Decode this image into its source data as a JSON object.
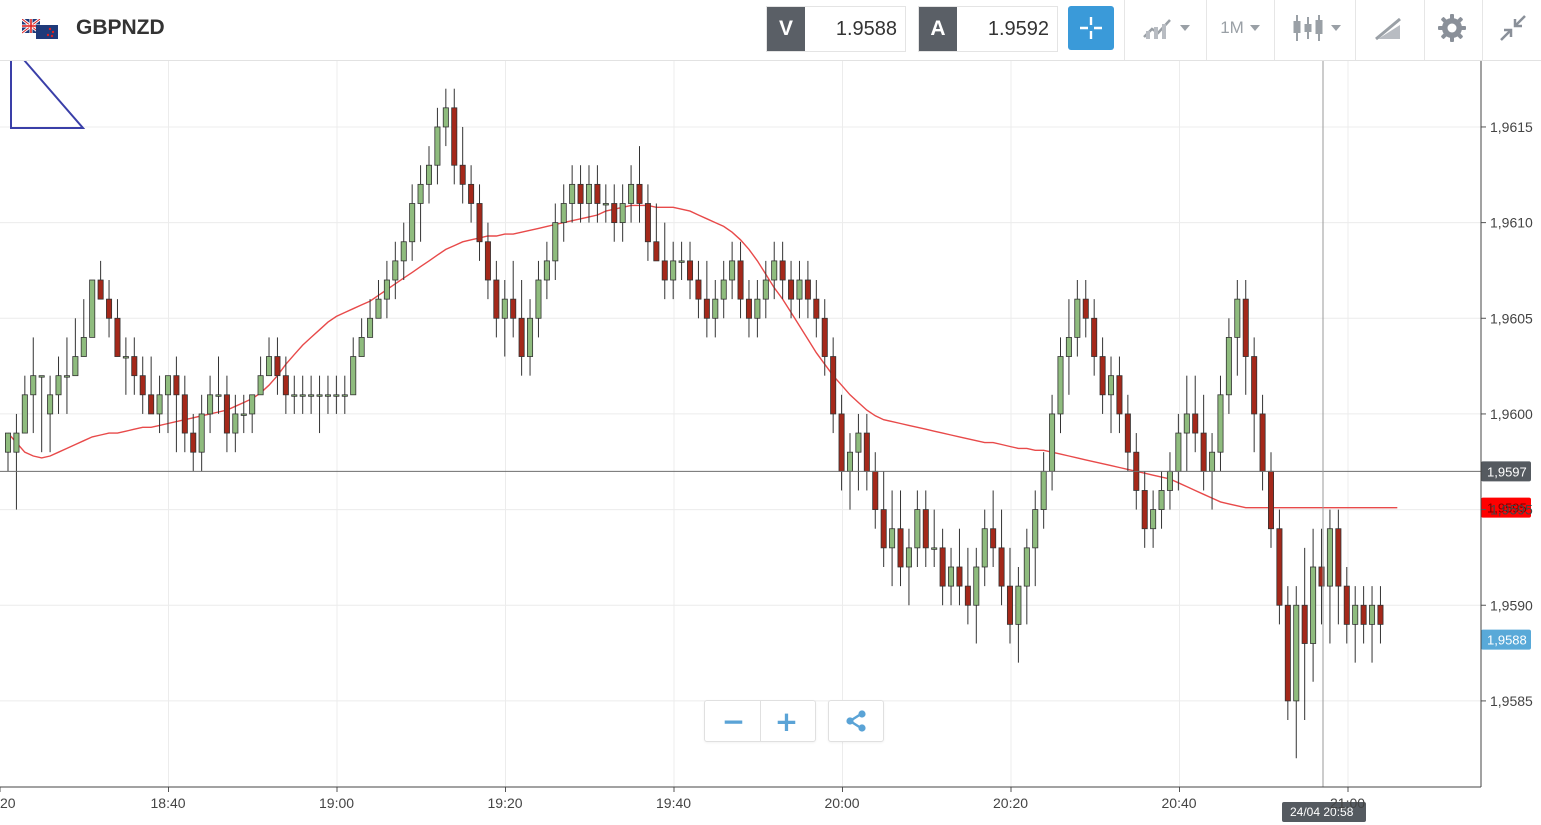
{
  "header": {
    "symbol": "GBPNZD",
    "bid_tag": "V",
    "bid_price": "1.9588",
    "ask_tag": "A",
    "ask_price": "1.9592",
    "timeframe": "1M",
    "icons": [
      "flag-icon",
      "crosshair-icon",
      "chart-type-icon",
      "candlestick-icon",
      "drawing-tools-icon",
      "settings-icon",
      "collapse-icon"
    ]
  },
  "zoom": {
    "minus": "−",
    "plus": "+"
  },
  "colors": {
    "up": "#8fbc7e",
    "down": "#a4281a",
    "ma": "#e84a4a",
    "accent": "#3a9ad9",
    "current_price": "#59a9d8",
    "ma_tag": "#ff0000",
    "crosshair_tag": "#555a60"
  },
  "chart_data": {
    "type": "candlestick",
    "ylim": [
      1.95805,
      1.96185
    ],
    "y_ticks": [
      "1,9615",
      "1,9610",
      "1,9605",
      "1,9600",
      "1,9595",
      "1,9590",
      "1,9585"
    ],
    "y_tick_values": [
      1.9615,
      1.961,
      1.9605,
      1.96,
      1.9595,
      1.959,
      1.9585
    ],
    "x_ticks": [
      "20",
      "18:40",
      "19:00",
      "19:20",
      "19:40",
      "20:00",
      "20:20",
      "20:40",
      "21:00"
    ],
    "tags": {
      "crosshair_price": "1,9597",
      "crosshair_price_value": 1.9597,
      "ma_price": "1,9595",
      "ma_price_value": 1.95951,
      "current_price": "1,9588",
      "current_price_value": 1.95882,
      "crosshair_time": "24/04 20:58"
    },
    "candles": [
      [
        1.9598,
        1.9599,
        1.9597,
        1.9599
      ],
      [
        1.9598,
        1.96,
        1.9595,
        1.9599
      ],
      [
        1.9599,
        1.9602,
        1.9599,
        1.9601
      ],
      [
        1.9601,
        1.9604,
        1.9599,
        1.9602
      ],
      [
        1.9602,
        1.9602,
        1.9598,
        1.9602
      ],
      [
        1.96,
        1.9602,
        1.9598,
        1.9601
      ],
      [
        1.9601,
        1.9603,
        1.96,
        1.9602
      ],
      [
        1.9602,
        1.9604,
        1.96,
        1.9602
      ],
      [
        1.9602,
        1.9605,
        1.9602,
        1.9603
      ],
      [
        1.9603,
        1.9606,
        1.9603,
        1.9604
      ],
      [
        1.9604,
        1.9607,
        1.9604,
        1.9607
      ],
      [
        1.9607,
        1.9608,
        1.9606,
        1.9606
      ],
      [
        1.9606,
        1.9607,
        1.9604,
        1.9605
      ],
      [
        1.9605,
        1.9606,
        1.9603,
        1.9603
      ],
      [
        1.9603,
        1.9604,
        1.9601,
        1.9603
      ],
      [
        1.9603,
        1.9604,
        1.9601,
        1.9602
      ],
      [
        1.9602,
        1.9603,
        1.96,
        1.9601
      ],
      [
        1.9601,
        1.9603,
        1.96,
        1.96
      ],
      [
        1.96,
        1.9602,
        1.9599,
        1.9601
      ],
      [
        1.9601,
        1.9602,
        1.9599,
        1.9602
      ],
      [
        1.9602,
        1.9603,
        1.9598,
        1.9601
      ],
      [
        1.9601,
        1.9602,
        1.9598,
        1.9599
      ],
      [
        1.9599,
        1.96,
        1.9597,
        1.9598
      ],
      [
        1.9598,
        1.9601,
        1.9597,
        1.96
      ],
      [
        1.96,
        1.9602,
        1.9599,
        1.9601
      ],
      [
        1.9601,
        1.9603,
        1.96,
        1.9601
      ],
      [
        1.9601,
        1.9602,
        1.9598,
        1.9599
      ],
      [
        1.9599,
        1.9601,
        1.9598,
        1.96
      ],
      [
        1.96,
        1.9601,
        1.9599,
        1.96
      ],
      [
        1.96,
        1.9601,
        1.9599,
        1.9601
      ],
      [
        1.9601,
        1.9603,
        1.9601,
        1.9602
      ],
      [
        1.9602,
        1.9604,
        1.9602,
        1.9603
      ],
      [
        1.9603,
        1.9604,
        1.9601,
        1.9602
      ],
      [
        1.9602,
        1.9603,
        1.96,
        1.9601
      ],
      [
        1.9601,
        1.9602,
        1.96,
        1.9601
      ],
      [
        1.9601,
        1.9602,
        1.96,
        1.9601
      ],
      [
        1.9601,
        1.9602,
        1.96,
        1.9601
      ],
      [
        1.9601,
        1.9602,
        1.9599,
        1.9601
      ],
      [
        1.9601,
        1.9602,
        1.96,
        1.9601
      ],
      [
        1.9601,
        1.9602,
        1.96,
        1.9601
      ],
      [
        1.9601,
        1.9602,
        1.96,
        1.9601
      ],
      [
        1.9601,
        1.9604,
        1.9601,
        1.9603
      ],
      [
        1.9603,
        1.9605,
        1.9603,
        1.9604
      ],
      [
        1.9604,
        1.9606,
        1.9604,
        1.9605
      ],
      [
        1.9605,
        1.9607,
        1.9605,
        1.9606
      ],
      [
        1.9606,
        1.9608,
        1.9605,
        1.9607
      ],
      [
        1.9607,
        1.9609,
        1.9606,
        1.9608
      ],
      [
        1.9608,
        1.961,
        1.9607,
        1.9609
      ],
      [
        1.9609,
        1.9612,
        1.9608,
        1.9611
      ],
      [
        1.9611,
        1.9613,
        1.9609,
        1.9612
      ],
      [
        1.9612,
        1.9614,
        1.9611,
        1.9613
      ],
      [
        1.9613,
        1.9616,
        1.9612,
        1.9615
      ],
      [
        1.9615,
        1.9617,
        1.9614,
        1.9616
      ],
      [
        1.9616,
        1.9617,
        1.9612,
        1.9613
      ],
      [
        1.9613,
        1.9615,
        1.9611,
        1.9612
      ],
      [
        1.9612,
        1.9613,
        1.961,
        1.9611
      ],
      [
        1.9611,
        1.9612,
        1.9608,
        1.9609
      ],
      [
        1.9609,
        1.961,
        1.9606,
        1.9607
      ],
      [
        1.9607,
        1.9608,
        1.9604,
        1.9605
      ],
      [
        1.9605,
        1.9607,
        1.9603,
        1.9606
      ],
      [
        1.9606,
        1.9608,
        1.9604,
        1.9605
      ],
      [
        1.9605,
        1.9607,
        1.9602,
        1.9603
      ],
      [
        1.9603,
        1.9606,
        1.9602,
        1.9605
      ],
      [
        1.9605,
        1.9608,
        1.9604,
        1.9607
      ],
      [
        1.9607,
        1.9609,
        1.9606,
        1.9608
      ],
      [
        1.9608,
        1.9611,
        1.9607,
        1.961
      ],
      [
        1.961,
        1.9612,
        1.9609,
        1.9611
      ],
      [
        1.9611,
        1.9613,
        1.961,
        1.9612
      ],
      [
        1.9612,
        1.9613,
        1.961,
        1.9611
      ],
      [
        1.9611,
        1.9613,
        1.961,
        1.9612
      ],
      [
        1.9612,
        1.9613,
        1.961,
        1.9611
      ],
      [
        1.9611,
        1.9612,
        1.961,
        1.9611
      ],
      [
        1.9611,
        1.9612,
        1.9609,
        1.961
      ],
      [
        1.961,
        1.9612,
        1.9609,
        1.9611
      ],
      [
        1.9611,
        1.9613,
        1.961,
        1.9612
      ],
      [
        1.9612,
        1.9614,
        1.961,
        1.9611
      ],
      [
        1.9611,
        1.9612,
        1.9608,
        1.9609
      ],
      [
        1.9609,
        1.9611,
        1.9608,
        1.9608
      ],
      [
        1.9608,
        1.961,
        1.9606,
        1.9607
      ],
      [
        1.9607,
        1.9609,
        1.9606,
        1.9608
      ],
      [
        1.9608,
        1.9609,
        1.9607,
        1.9608
      ],
      [
        1.9608,
        1.9609,
        1.9606,
        1.9607
      ],
      [
        1.9607,
        1.9608,
        1.9605,
        1.9606
      ],
      [
        1.9606,
        1.9608,
        1.9604,
        1.9605
      ],
      [
        1.9605,
        1.9607,
        1.9604,
        1.9606
      ],
      [
        1.9606,
        1.9608,
        1.9605,
        1.9607
      ],
      [
        1.9607,
        1.9609,
        1.9606,
        1.9608
      ],
      [
        1.9608,
        1.9609,
        1.9605,
        1.9606
      ],
      [
        1.9606,
        1.9607,
        1.9604,
        1.9605
      ],
      [
        1.9605,
        1.9607,
        1.9604,
        1.9606
      ],
      [
        1.9606,
        1.9608,
        1.9605,
        1.9607
      ],
      [
        1.9607,
        1.9609,
        1.9606,
        1.9608
      ],
      [
        1.9608,
        1.9609,
        1.9606,
        1.9607
      ],
      [
        1.9607,
        1.9608,
        1.9605,
        1.9606
      ],
      [
        1.9606,
        1.9608,
        1.9605,
        1.9607
      ],
      [
        1.9607,
        1.9608,
        1.9605,
        1.9606
      ],
      [
        1.9606,
        1.9607,
        1.9604,
        1.9605
      ],
      [
        1.9605,
        1.9606,
        1.9602,
        1.9603
      ],
      [
        1.9603,
        1.9604,
        1.9599,
        1.96
      ],
      [
        1.96,
        1.9601,
        1.9596,
        1.9597
      ],
      [
        1.9597,
        1.9599,
        1.9595,
        1.9598
      ],
      [
        1.9598,
        1.96,
        1.9596,
        1.9599
      ],
      [
        1.9599,
        1.96,
        1.9596,
        1.9597
      ],
      [
        1.9597,
        1.9598,
        1.9594,
        1.9595
      ],
      [
        1.9595,
        1.9597,
        1.9592,
        1.9593
      ],
      [
        1.9593,
        1.9596,
        1.9591,
        1.9594
      ],
      [
        1.9594,
        1.9596,
        1.9591,
        1.9592
      ],
      [
        1.9592,
        1.9594,
        1.959,
        1.9593
      ],
      [
        1.9593,
        1.9596,
        1.9592,
        1.9595
      ],
      [
        1.9595,
        1.9596,
        1.9592,
        1.9593
      ],
      [
        1.9593,
        1.9595,
        1.9592,
        1.9593
      ],
      [
        1.9593,
        1.9594,
        1.959,
        1.9591
      ],
      [
        1.9591,
        1.9593,
        1.959,
        1.9592
      ],
      [
        1.9592,
        1.9594,
        1.959,
        1.9591
      ],
      [
        1.9591,
        1.9593,
        1.9589,
        1.959
      ],
      [
        1.959,
        1.9593,
        1.9588,
        1.9592
      ],
      [
        1.9592,
        1.9595,
        1.9591,
        1.9594
      ],
      [
        1.9594,
        1.9596,
        1.9592,
        1.9593
      ],
      [
        1.9593,
        1.9595,
        1.959,
        1.9591
      ],
      [
        1.9591,
        1.9593,
        1.9588,
        1.9589
      ],
      [
        1.9589,
        1.9592,
        1.9587,
        1.9591
      ],
      [
        1.9591,
        1.9594,
        1.9589,
        1.9593
      ],
      [
        1.9593,
        1.9596,
        1.9591,
        1.9595
      ],
      [
        1.9595,
        1.9598,
        1.9594,
        1.9597
      ],
      [
        1.9597,
        1.9601,
        1.9596,
        1.96
      ],
      [
        1.96,
        1.9604,
        1.9599,
        1.9603
      ],
      [
        1.9603,
        1.9606,
        1.9601,
        1.9604
      ],
      [
        1.9604,
        1.9607,
        1.9603,
        1.9606
      ],
      [
        1.9606,
        1.9607,
        1.9604,
        1.9605
      ],
      [
        1.9605,
        1.9606,
        1.9602,
        1.9603
      ],
      [
        1.9603,
        1.9604,
        1.96,
        1.9601
      ],
      [
        1.9601,
        1.9603,
        1.9599,
        1.9602
      ],
      [
        1.9602,
        1.9603,
        1.9599,
        1.96
      ],
      [
        1.96,
        1.9601,
        1.9597,
        1.9598
      ],
      [
        1.9598,
        1.9599,
        1.9595,
        1.9596
      ],
      [
        1.9596,
        1.9597,
        1.9593,
        1.9594
      ],
      [
        1.9594,
        1.9596,
        1.9593,
        1.9595
      ],
      [
        1.9595,
        1.9597,
        1.9594,
        1.9596
      ],
      [
        1.9596,
        1.9598,
        1.9595,
        1.9597
      ],
      [
        1.9597,
        1.96,
        1.9596,
        1.9599
      ],
      [
        1.9599,
        1.9602,
        1.9597,
        1.96
      ],
      [
        1.96,
        1.9602,
        1.9598,
        1.9599
      ],
      [
        1.9599,
        1.9601,
        1.9596,
        1.9597
      ],
      [
        1.9597,
        1.9599,
        1.9595,
        1.9598
      ],
      [
        1.9598,
        1.9602,
        1.9597,
        1.9601
      ],
      [
        1.9601,
        1.9605,
        1.96,
        1.9604
      ],
      [
        1.9604,
        1.9607,
        1.9602,
        1.9606
      ],
      [
        1.9606,
        1.9607,
        1.9601,
        1.9603
      ],
      [
        1.9603,
        1.9604,
        1.9598,
        1.96
      ],
      [
        1.96,
        1.9601,
        1.9596,
        1.9597
      ],
      [
        1.9597,
        1.9598,
        1.9593,
        1.9594
      ],
      [
        1.9594,
        1.9595,
        1.9589,
        1.959
      ],
      [
        1.959,
        1.9591,
        1.9584,
        1.9585
      ],
      [
        1.9585,
        1.9591,
        1.9582,
        1.959
      ],
      [
        1.959,
        1.9593,
        1.9584,
        1.9588
      ],
      [
        1.9588,
        1.9594,
        1.9586,
        1.9592
      ],
      [
        1.9592,
        1.9594,
        1.9589,
        1.9591
      ],
      [
        1.9591,
        1.9595,
        1.9588,
        1.9594
      ],
      [
        1.9594,
        1.9595,
        1.9589,
        1.9591
      ],
      [
        1.9591,
        1.9592,
        1.9588,
        1.9589
      ],
      [
        1.9589,
        1.9591,
        1.9587,
        1.959
      ],
      [
        1.959,
        1.9591,
        1.9588,
        1.9589
      ],
      [
        1.9589,
        1.9591,
        1.9587,
        1.959
      ],
      [
        1.959,
        1.9591,
        1.9588,
        1.9589
      ]
    ],
    "ma": [
      1.9599,
      1.95985,
      1.9598,
      1.95978,
      1.95977,
      1.95978,
      1.9598,
      1.95982,
      1.95984,
      1.95986,
      1.95988,
      1.95989,
      1.9599,
      1.9599,
      1.95991,
      1.95992,
      1.95993,
      1.95993,
      1.95994,
      1.95995,
      1.95996,
      1.95997,
      1.95998,
      1.95999,
      1.96,
      1.96001,
      1.96002,
      1.96004,
      1.96006,
      1.96008,
      1.96011,
      1.96015,
      1.9602,
      1.96026,
      1.96031,
      1.96036,
      1.9604,
      1.96044,
      1.96048,
      1.96051,
      1.96053,
      1.96055,
      1.96057,
      1.96059,
      1.96062,
      1.96065,
      1.96068,
      1.96071,
      1.96074,
      1.96077,
      1.9608,
      1.96083,
      1.96086,
      1.96088,
      1.9609,
      1.96091,
      1.96092,
      1.96093,
      1.96093,
      1.96094,
      1.96094,
      1.96095,
      1.96096,
      1.96097,
      1.96098,
      1.96099,
      1.961,
      1.96101,
      1.96102,
      1.96103,
      1.96104,
      1.96106,
      1.96107,
      1.96108,
      1.96109,
      1.96109,
      1.96109,
      1.96108,
      1.96108,
      1.96108,
      1.96107,
      1.96106,
      1.96104,
      1.96102,
      1.961,
      1.96098,
      1.96095,
      1.96091,
      1.96086,
      1.9608,
      1.96073,
      1.96066,
      1.9606,
      1.96053,
      1.96046,
      1.96039,
      1.96032,
      1.96026,
      1.9602,
      1.96015,
      1.9601,
      1.96006,
      1.96002,
      1.95999,
      1.95997,
      1.95996,
      1.95995,
      1.95994,
      1.95993,
      1.95992,
      1.95991,
      1.9599,
      1.95989,
      1.95988,
      1.95987,
      1.95986,
      1.95985,
      1.95985,
      1.95984,
      1.95983,
      1.95982,
      1.95982,
      1.95981,
      1.95981,
      1.9598,
      1.95979,
      1.95978,
      1.95977,
      1.95976,
      1.95975,
      1.95974,
      1.95973,
      1.95972,
      1.95971,
      1.9597,
      1.95969,
      1.95968,
      1.95967,
      1.95966,
      1.95964,
      1.95962,
      1.9596,
      1.95958,
      1.95956,
      1.95954,
      1.95953,
      1.95952,
      1.95951,
      1.95951,
      1.95951,
      1.95951,
      1.95951,
      1.95951,
      1.95951,
      1.95951,
      1.95951,
      1.95951,
      1.95951,
      1.95951,
      1.95951,
      1.95951,
      1.95951,
      1.95951,
      1.95951,
      1.95951,
      1.95951
    ]
  }
}
